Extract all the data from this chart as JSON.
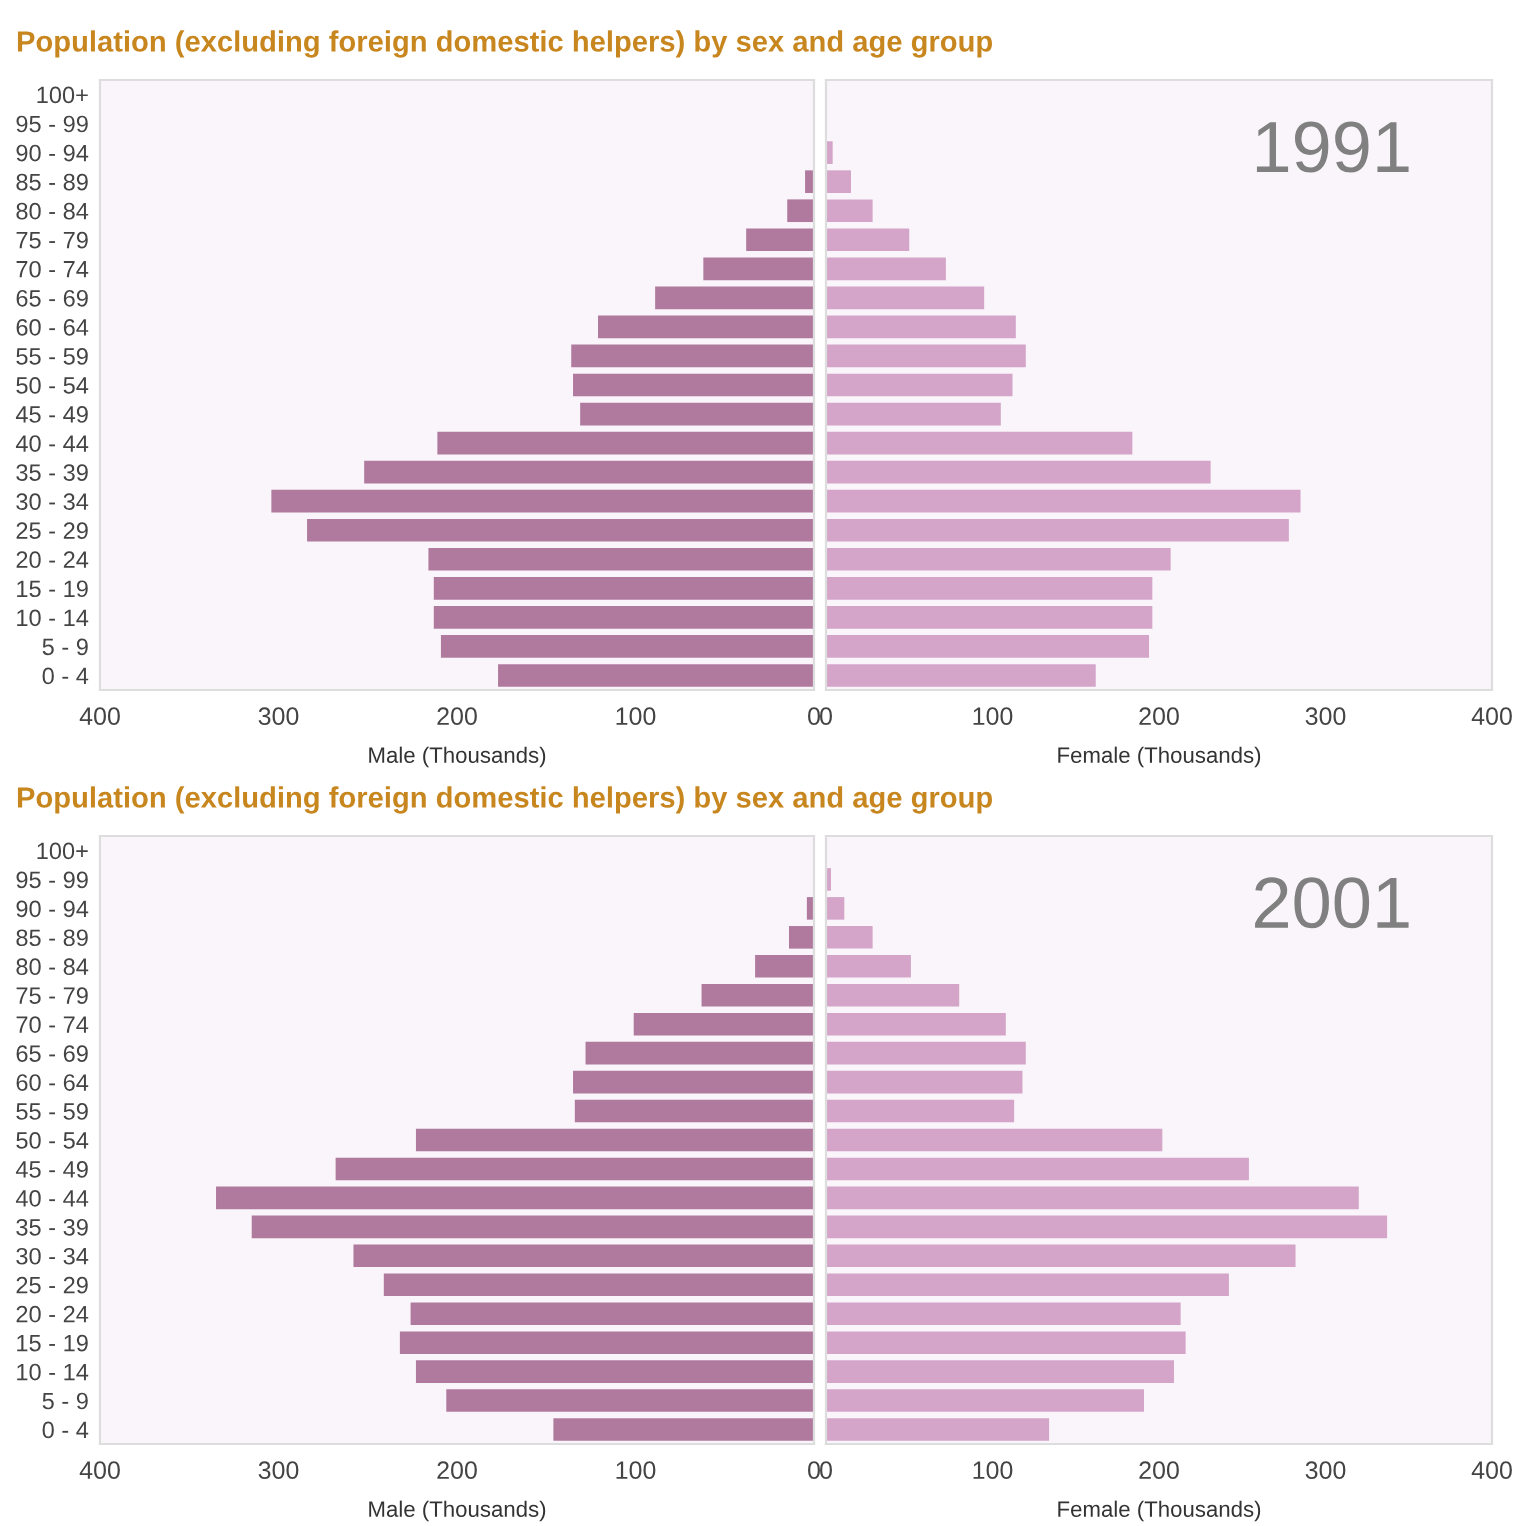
{
  "chart_data": [
    {
      "type": "bar",
      "orientation": "horizontal",
      "title": "Population (excluding foreign domestic helpers) by sex and age group",
      "xlabel": "Male (Thousands)",
      "categories": [
        "100+",
        "95 - 99",
        "90 - 94",
        "85 - 89",
        "80 - 84",
        "75 - 79",
        "70 - 74",
        "65 - 69",
        "60 - 64",
        "55 - 59",
        "50 - 54",
        "45 - 49",
        "40 - 44",
        "35 - 39",
        "30 - 34",
        "25 - 29",
        "20 - 24",
        "15 - 19",
        "10 - 14",
        "5 - 9",
        "0 - 4"
      ],
      "series": [
        {
          "color": "#b07a9e",
          "values": [
            0,
            0,
            0,
            5,
            15,
            38,
            62,
            89,
            121,
            136,
            135,
            131,
            211,
            252,
            304,
            284,
            216,
            213,
            213,
            209,
            177
          ]
        }
      ],
      "xlim": [
        400,
        0
      ],
      "xticks": [
        400,
        300,
        200,
        100,
        0
      ]
    },
    {
      "type": "bar",
      "orientation": "horizontal",
      "xlabel": "Female (Thousands)",
      "annotations": [
        "1991"
      ],
      "tick_labels": "x",
      "categories": [
        null,
        null,
        null,
        null,
        null,
        null,
        null,
        null,
        null,
        null,
        null,
        null,
        null,
        null,
        null,
        null,
        null,
        null,
        null,
        null,
        null
      ],
      "series": [
        {
          "color": "#d4a5c8",
          "values": [
            0,
            0,
            4,
            15,
            28,
            50,
            72,
            95,
            114,
            120,
            112,
            105,
            184,
            231,
            285,
            278,
            207,
            196,
            196,
            194,
            162
          ]
        }
      ],
      "xlim": [
        0,
        400
      ],
      "xticks": [
        0,
        100,
        200,
        300,
        400
      ]
    },
    {
      "type": "bar",
      "orientation": "horizontal",
      "title": "Population (excluding foreign domestic helpers) by sex and age group",
      "xlabel": "Male (Thousands)",
      "categories": [
        "100+",
        "95 - 99",
        "90 - 94",
        "85 - 89",
        "80 - 84",
        "75 - 79",
        "70 - 74",
        "65 - 69",
        "60 - 64",
        "55 - 59",
        "50 - 54",
        "45 - 49",
        "40 - 44",
        "35 - 39",
        "30 - 34",
        "25 - 29",
        "20 - 24",
        "15 - 19",
        "10 - 14",
        "5 - 9",
        "0 - 4"
      ],
      "series": [
        {
          "color": "#b07a9e",
          "values": [
            0,
            0,
            4,
            14,
            33,
            63,
            101,
            128,
            135,
            134,
            223,
            268,
            335,
            315,
            258,
            241,
            226,
            232,
            223,
            206,
            146
          ]
        }
      ],
      "xlim": [
        400,
        0
      ],
      "xticks": [
        400,
        300,
        200,
        100,
        0
      ]
    },
    {
      "type": "bar",
      "orientation": "horizontal",
      "xlabel": "Female (Thousands)",
      "annotations": [
        "2001"
      ],
      "tick_labels": "x",
      "categories": [
        null,
        null,
        null,
        null,
        null,
        null,
        null,
        null,
        null,
        null,
        null,
        null,
        null,
        null,
        null,
        null,
        null,
        null,
        null,
        null,
        null
      ],
      "series": [
        {
          "color": "#d4a5c8",
          "values": [
            0,
            3,
            11,
            28,
            51,
            80,
            108,
            120,
            118,
            113,
            202,
            254,
            320,
            337,
            282,
            242,
            213,
            216,
            209,
            191,
            134
          ]
        }
      ],
      "xlim": [
        0,
        400
      ],
      "xticks": [
        0,
        100,
        200,
        300,
        400
      ]
    }
  ]
}
